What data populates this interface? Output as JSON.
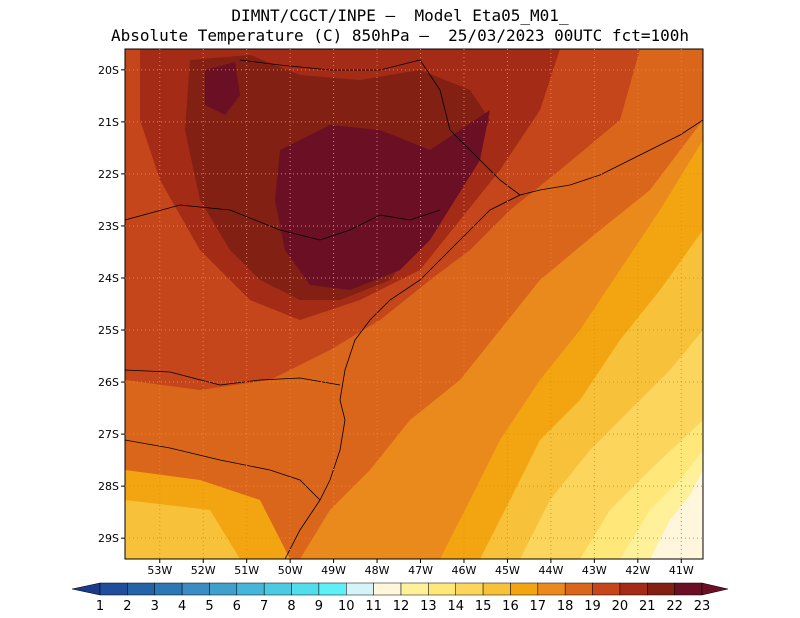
{
  "title": {
    "line1": "DIMNT/CGCT/INPE –  Model Eta05_M01_",
    "line2": "Absolute Temperature (C) 850hPa –  25/03/2023 00UTC fct=100h"
  },
  "map": {
    "lon_range": [
      -53.8,
      -40.5
    ],
    "lat_range": [
      -29.4,
      -19.6
    ],
    "lat_ticks": [
      {
        "value": -20,
        "label": "20S"
      },
      {
        "value": -21,
        "label": "21S"
      },
      {
        "value": -22,
        "label": "22S"
      },
      {
        "value": -23,
        "label": "23S"
      },
      {
        "value": -24,
        "label": "24S"
      },
      {
        "value": -25,
        "label": "25S"
      },
      {
        "value": -26,
        "label": "26S"
      },
      {
        "value": -27,
        "label": "27S"
      },
      {
        "value": -28,
        "label": "28S"
      },
      {
        "value": -29,
        "label": "29S"
      }
    ],
    "lon_ticks": [
      {
        "value": -53,
        "label": "53W"
      },
      {
        "value": -52,
        "label": "52W"
      },
      {
        "value": -51,
        "label": "51W"
      },
      {
        "value": -50,
        "label": "50W"
      },
      {
        "value": -49,
        "label": "49W"
      },
      {
        "value": -48,
        "label": "48W"
      },
      {
        "value": -47,
        "label": "47W"
      },
      {
        "value": -46,
        "label": "46W"
      },
      {
        "value": -45,
        "label": "45W"
      },
      {
        "value": -44,
        "label": "44W"
      },
      {
        "value": -43,
        "label": "43W"
      },
      {
        "value": -42,
        "label": "42W"
      },
      {
        "value": -41,
        "label": "41W"
      }
    ],
    "grid": "dotted"
  },
  "colorbar": {
    "labels": [
      "1",
      "2",
      "3",
      "4",
      "5",
      "6",
      "7",
      "8",
      "9",
      "10",
      "11",
      "12",
      "13",
      "14",
      "15",
      "16",
      "17",
      "18",
      "19",
      "20",
      "21",
      "22",
      "23"
    ],
    "colors": [
      "#1a3a8c",
      "#1f4e9c",
      "#2563a8",
      "#2b78b4",
      "#3a8cc2",
      "#3fa0cc",
      "#45b6d9",
      "#4ccae3",
      "#52dded",
      "#5ef0f7",
      "#d4f4fa",
      "#fff6dc",
      "#fff19a",
      "#ffe77a",
      "#fcd65c",
      "#f8c13a",
      "#f2a510",
      "#ea8a1c",
      "#d9661a",
      "#c4461a",
      "#a42b16",
      "#822013",
      "#6b0f25"
    ]
  }
}
